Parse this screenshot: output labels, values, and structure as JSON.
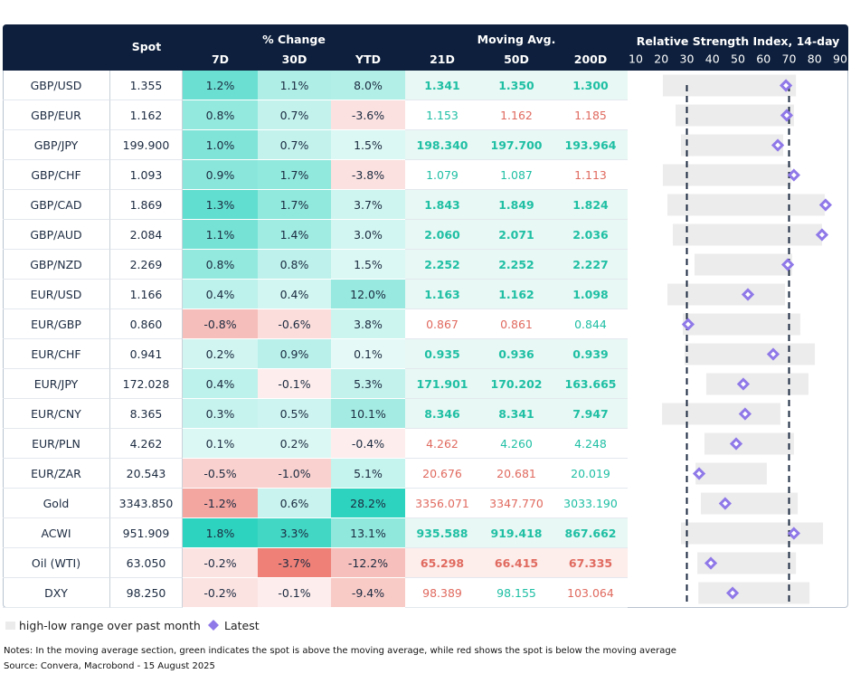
{
  "header": {
    "spot": "Spot",
    "pct_change": "% Change",
    "moving_avg": "Moving Avg.",
    "rsi": "Relative Strength Index, 14-day",
    "cols": [
      "7D",
      "30D",
      "YTD",
      "21D",
      "50D",
      "200D"
    ]
  },
  "table": {
    "rows": [
      [
        "GBP/USD",
        "1.355",
        "1.2%",
        "1.1%",
        "8.0%",
        "1.341",
        "1.350",
        "1.300"
      ],
      [
        "GBP/EUR",
        "1.162",
        "0.8%",
        "0.7%",
        "-3.6%",
        "1.153",
        "1.162",
        "1.185"
      ],
      [
        "GBP/JPY",
        "199.900",
        "1.0%",
        "0.7%",
        "1.5%",
        "198.340",
        "197.700",
        "193.964"
      ],
      [
        "GBP/CHF",
        "1.093",
        "0.9%",
        "1.7%",
        "-3.8%",
        "1.079",
        "1.087",
        "1.113"
      ],
      [
        "GBP/CAD",
        "1.869",
        "1.3%",
        "1.7%",
        "3.7%",
        "1.843",
        "1.849",
        "1.824"
      ],
      [
        "GBP/AUD",
        "2.084",
        "1.1%",
        "1.4%",
        "3.0%",
        "2.060",
        "2.071",
        "2.036"
      ],
      [
        "GBP/NZD",
        "2.269",
        "0.8%",
        "0.8%",
        "1.5%",
        "2.252",
        "2.252",
        "2.227"
      ],
      [
        "EUR/USD",
        "1.166",
        "0.4%",
        "0.4%",
        "12.0%",
        "1.163",
        "1.162",
        "1.098"
      ],
      [
        "EUR/GBP",
        "0.860",
        "-0.8%",
        "-0.6%",
        "3.8%",
        "0.867",
        "0.861",
        "0.844"
      ],
      [
        "EUR/CHF",
        "0.941",
        "0.2%",
        "0.9%",
        "0.1%",
        "0.935",
        "0.936",
        "0.939"
      ],
      [
        "EUR/JPY",
        "172.028",
        "0.4%",
        "-0.1%",
        "5.3%",
        "171.901",
        "170.202",
        "163.665"
      ],
      [
        "EUR/CNY",
        "8.365",
        "0.3%",
        "0.5%",
        "10.1%",
        "8.346",
        "8.341",
        "7.947"
      ],
      [
        "EUR/PLN",
        "4.262",
        "0.1%",
        "0.2%",
        "-0.4%",
        "4.262",
        "4.260",
        "4.248"
      ],
      [
        "EUR/ZAR",
        "20.543",
        "-0.5%",
        "-1.0%",
        "5.1%",
        "20.676",
        "20.681",
        "20.019"
      ],
      [
        "Gold",
        "3343.850",
        "-1.2%",
        "0.6%",
        "28.2%",
        "3356.071",
        "3347.770",
        "3033.190"
      ],
      [
        "ACWI",
        "951.909",
        "1.8%",
        "3.3%",
        "13.1%",
        "935.588",
        "919.418",
        "867.662"
      ],
      [
        "Oil (WTI)",
        "63.050",
        "-0.2%",
        "-3.7%",
        "-12.2%",
        "65.298",
        "66.415",
        "67.335"
      ],
      [
        "DXY",
        "98.250",
        "-0.2%",
        "-0.1%",
        "-9.4%",
        "98.389",
        "98.155",
        "103.064"
      ]
    ]
  },
  "rsi": {
    "xlim": [
      10,
      90
    ],
    "xticks": [
      10,
      20,
      30,
      40,
      50,
      60,
      70,
      80,
      90
    ],
    "ref_lines": [
      30,
      70
    ],
    "ranges": [
      [
        20.6,
        72.7,
        68.8
      ],
      [
        25.6,
        71.9,
        69.1
      ],
      [
        27.7,
        67.7,
        65.6
      ],
      [
        20.6,
        70.9,
        71.9
      ],
      [
        22.4,
        84,
        84.3
      ],
      [
        24.5,
        82.9,
        82.9
      ],
      [
        33,
        71.2,
        69.5
      ],
      [
        22.4,
        68.4,
        53.9
      ],
      [
        28.4,
        74.4,
        30.5
      ],
      [
        29.1,
        80.1,
        63.8
      ],
      [
        37.6,
        77.6,
        52.1
      ],
      [
        20.3,
        66.6,
        52.8
      ],
      [
        36.9,
        71.9,
        49.3
      ],
      [
        33.4,
        61.3,
        34.8
      ],
      [
        35.5,
        73.4,
        45
      ],
      [
        27.7,
        83.3,
        71.9
      ],
      [
        34.1,
        72.7,
        39.4
      ],
      [
        34.5,
        78,
        47.9
      ]
    ]
  },
  "legend": {
    "range": "high-low range over past month",
    "latest": "Latest"
  },
  "notes": "Notes: In the moving average section, green indicates the spot is above the moving average, while red shows the spot is below the moving average",
  "source": "Source: Convera, Macrobond - 15 August 2025"
}
